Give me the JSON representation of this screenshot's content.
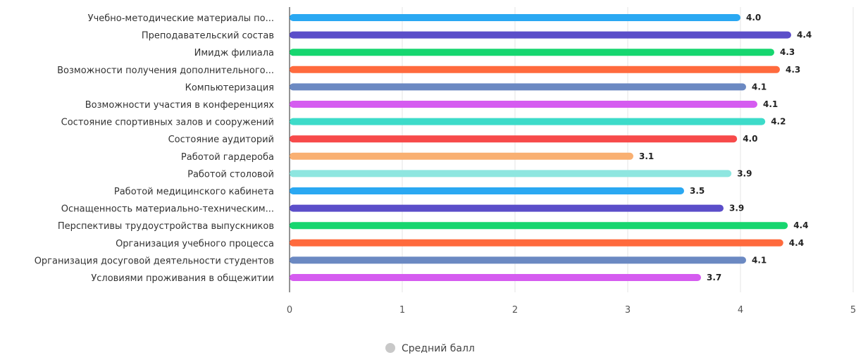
{
  "chart_data": {
    "type": "bar",
    "orientation": "horizontal",
    "categories": [
      "Учебно-методические материалы по...",
      "Преподавательский состав",
      "Имидж филиала",
      "Возможности получения дополнительного...",
      "Компьютеризация",
      "Возможности участия в конференциях",
      "Состояние спортивных залов и сооружений",
      "Состояние аудиторий",
      "Работой гардероба",
      "Работой столовой",
      "Работой медицинского кабинета",
      "Оснащенность материально-техническим...",
      "Перспективы трудоустройства выпускников",
      "Организация учебного процесса",
      "Организация досуговой деятельности студентов",
      "Условиями проживания в общежитии"
    ],
    "values": [
      4.0,
      4.45,
      4.3,
      4.35,
      4.05,
      4.15,
      4.22,
      3.97,
      3.05,
      3.92,
      3.5,
      3.85,
      4.42,
      4.38,
      4.05,
      3.65
    ],
    "value_labels": [
      "4.0",
      "4.4",
      "4.3",
      "4.3",
      "4.1",
      "4.1",
      "4.2",
      "4.0",
      "3.1",
      "3.9",
      "3.5",
      "3.9",
      "4.4",
      "4.4",
      "4.1",
      "3.7"
    ],
    "colors": [
      "#2aa8f2",
      "#5b4ec9",
      "#16d66f",
      "#ff6a3d",
      "#6b89c2",
      "#d55cf0",
      "#3ddbc9",
      "#f74a4a",
      "#f9b072",
      "#8ee6e0",
      "#2aa8f2",
      "#5b4ec9",
      "#16d66f",
      "#ff6a3d",
      "#6b89c2",
      "#d55cf0"
    ],
    "xlim": [
      0,
      5
    ],
    "xticks": [
      "0",
      "1",
      "2",
      "3",
      "4",
      "5"
    ],
    "grid": true,
    "legend": {
      "label": "Средний балл",
      "color": "#c8c8c8",
      "position": "bottom-center"
    }
  }
}
